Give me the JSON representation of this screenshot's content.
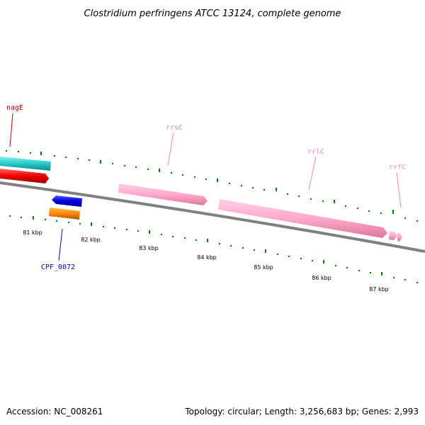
{
  "title": "Clostridium perfringens ATCC 13124, complete genome",
  "footer": {
    "accession": "Accession: NC_008261",
    "summary": "Topology: circular; Length: 3,256,683 bp; Genes: 2,993"
  },
  "ticks": [
    "81 kbp",
    "82 kbp",
    "83 kbp",
    "84 kbp",
    "85 kbp",
    "86 kbp",
    "87 kbp"
  ],
  "genes": [
    {
      "label": "nagE",
      "color": "#cc0000"
    },
    {
      "label": "CPF_0072",
      "color": "#0000cc"
    },
    {
      "label": "rrsC",
      "color": "#ee88bb"
    },
    {
      "label": "rrlC",
      "color": "#ee88bb"
    },
    {
      "label": "rrfC",
      "color": "#ee88bb"
    }
  ],
  "colors": {
    "backbone": "#808080",
    "tick": "#008000",
    "cyan_feature": "#22cccc",
    "red_feature": "#ee0000",
    "blue_feature": "#0000dd",
    "orange_feature": "#ff8800",
    "rrna_feature": "#ffaacc"
  }
}
